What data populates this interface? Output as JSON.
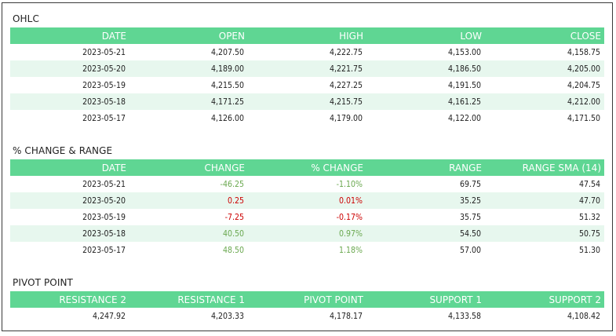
{
  "colors": {
    "header_bg": "#5fd693",
    "alt_row_bg": "#e7f7ee",
    "down_change": "#6aa84f",
    "up_change": "#cc0000"
  },
  "ohlc": {
    "title": "OHLC",
    "headers": [
      "DATE",
      "OPEN",
      "HIGH",
      "LOW",
      "CLOSE"
    ],
    "rows": [
      [
        "2023-05-21",
        "4,207.50",
        "4,222.75",
        "4,153.00",
        "4,158.75"
      ],
      [
        "2023-05-20",
        "4,189.00",
        "4,221.75",
        "4,186.50",
        "4,205.00"
      ],
      [
        "2023-05-19",
        "4,215.50",
        "4,227.25",
        "4,191.50",
        "4,204.75"
      ],
      [
        "2023-05-18",
        "4,171.25",
        "4,215.75",
        "4,161.25",
        "4,212.00"
      ],
      [
        "2023-05-17",
        "4,126.00",
        "4,179.00",
        "4,122.00",
        "4,171.50"
      ]
    ]
  },
  "change": {
    "title": "% CHANGE & RANGE",
    "headers": [
      "DATE",
      "CHANGE",
      "% CHANGE",
      "RANGE",
      "RANGE SMA (14)"
    ],
    "rows": [
      [
        "2023-05-21",
        "-46.25",
        "-1.10%",
        "69.75",
        "47.54"
      ],
      [
        "2023-05-20",
        "0.25",
        "0.01%",
        "35.25",
        "47.70"
      ],
      [
        "2023-05-19",
        "-7.25",
        "-0.17%",
        "35.75",
        "51.32"
      ],
      [
        "2023-05-18",
        "40.50",
        "0.97%",
        "54.50",
        "50.75"
      ],
      [
        "2023-05-17",
        "48.50",
        "1.18%",
        "57.00",
        "51.30"
      ]
    ]
  },
  "pivot": {
    "title": "PIVOT POINT",
    "headers": [
      "RESISTANCE 2",
      "RESISTANCE 1",
      "PIVOT POINT",
      "SUPPORT 1",
      "SUPPORT 2"
    ],
    "values": [
      "4,247.92",
      "4,203.33",
      "4,178.17",
      "4,133.58",
      "4,108.42"
    ]
  }
}
